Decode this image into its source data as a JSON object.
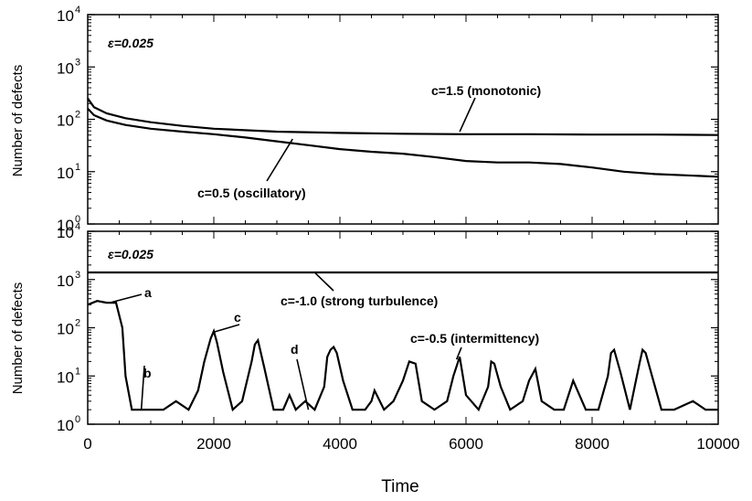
{
  "chart_data": {
    "type": "line",
    "xlabel": "Time",
    "x_ticks": [
      "0",
      "2000",
      "4000",
      "6000",
      "8000",
      "10000"
    ],
    "xlim": [
      0,
      10000
    ],
    "y_scale": "log",
    "panels": [
      {
        "id": "top",
        "ylabel": "Number of defects",
        "ylim": [
          1,
          10000
        ],
        "y_ticks": [
          {
            "base": "10",
            "exp": "0"
          },
          {
            "base": "10",
            "exp": "1"
          },
          {
            "base": "10",
            "exp": "2"
          },
          {
            "base": "10",
            "exp": "3"
          },
          {
            "base": "10",
            "exp": "4"
          }
        ],
        "epsilon_label": "ε=0.025",
        "series": [
          {
            "name": "c=1.5 (monotonic)",
            "x": [
              0,
              100,
              300,
              600,
              1000,
              1500,
              2000,
              3000,
              4000,
              5000,
              6000,
              7000,
              8000,
              9000,
              10000
            ],
            "y": [
              250,
              170,
              130,
              105,
              88,
              75,
              66,
              58,
              55,
              53,
              52,
              52,
              51,
              51,
              50
            ]
          },
          {
            "name": "c=0.5 (oscillatory)",
            "x": [
              0,
              100,
              300,
              600,
              1000,
              1500,
              2000,
              2500,
              3000,
              3500,
              4000,
              4500,
              5000,
              5500,
              6000,
              6500,
              7000,
              7500,
              8000,
              8500,
              9000,
              9500,
              10000
            ],
            "y": [
              160,
              120,
              95,
              78,
              66,
              58,
              52,
              45,
              38,
              32,
              27,
              24,
              22,
              19,
              16,
              15,
              15,
              14,
              12,
              10,
              9,
              8.5,
              8
            ]
          }
        ],
        "annotations": [
          {
            "text": "c=1.5 (monotonic)",
            "points_to": [
              5900,
              58
            ]
          },
          {
            "text": "c=0.5 (oscillatory)",
            "points_to": [
              3250,
              42
            ]
          }
        ]
      },
      {
        "id": "bottom",
        "ylabel": "Number of defects",
        "ylim": [
          1,
          10000
        ],
        "y_ticks": [
          {
            "base": "10",
            "exp": "0"
          },
          {
            "base": "10",
            "exp": "1"
          },
          {
            "base": "10",
            "exp": "2"
          },
          {
            "base": "10",
            "exp": "3"
          },
          {
            "base": "10",
            "exp": "4"
          }
        ],
        "epsilon_label": "ε=0.025",
        "series": [
          {
            "name": "c=-1.0 (strong turbulence)",
            "x": [
              0,
              10000
            ],
            "y": [
              1400,
              1400
            ]
          },
          {
            "name": "c=-0.5 (intermittency)",
            "x": [
              0,
              150,
              300,
              450,
              550,
              600,
              700,
              800,
              1000,
              1200,
              1400,
              1600,
              1750,
              1850,
              1950,
              2000,
              2050,
              2150,
              2300,
              2450,
              2600,
              2650,
              2700,
              2800,
              2950,
              3100,
              3200,
              3300,
              3450,
              3600,
              3750,
              3800,
              3850,
              3900,
              3950,
              4050,
              4200,
              4400,
              4500,
              4550,
              4700,
              4850,
              5000,
              5100,
              5200,
              5300,
              5500,
              5700,
              5800,
              5900,
              6000,
              6200,
              6350,
              6400,
              6450,
              6550,
              6700,
              6900,
              7000,
              7100,
              7200,
              7400,
              7550,
              7700,
              7900,
              8100,
              8250,
              8300,
              8350,
              8450,
              8600,
              8750,
              8800,
              8850,
              8950,
              9100,
              9300,
              9600,
              9800,
              10000
            ],
            "y": [
              300,
              360,
              330,
              330,
              100,
              10,
              2,
              2,
              2,
              2,
              3,
              2,
              5,
              20,
              60,
              85,
              50,
              12,
              2,
              3,
              20,
              45,
              55,
              15,
              2,
              2,
              4,
              2,
              3,
              2,
              6,
              25,
              35,
              40,
              30,
              8,
              2,
              2,
              3,
              5,
              2,
              3,
              8,
              20,
              18,
              3,
              2,
              3,
              10,
              25,
              4,
              2,
              6,
              20,
              18,
              6,
              2,
              3,
              8,
              14,
              3,
              2,
              2,
              8,
              2,
              2,
              10,
              30,
              35,
              12,
              2,
              18,
              35,
              30,
              10,
              2,
              2,
              3,
              2,
              2
            ]
          }
        ],
        "annotations": [
          {
            "text": "a",
            "points_to": [
              350,
              330
            ]
          },
          {
            "text": "b",
            "points_to": [
              850,
              2
            ]
          },
          {
            "text": "c",
            "points_to": [
              1980,
              80
            ]
          },
          {
            "text": "d",
            "points_to": [
              3500,
              2
            ]
          },
          {
            "text": "c=-1.0 (strong turbulence)",
            "points_to": [
              3600,
              1400
            ]
          },
          {
            "text": "c=-0.5 (intermittency)",
            "points_to": [
              5850,
              22
            ]
          }
        ]
      }
    ]
  }
}
